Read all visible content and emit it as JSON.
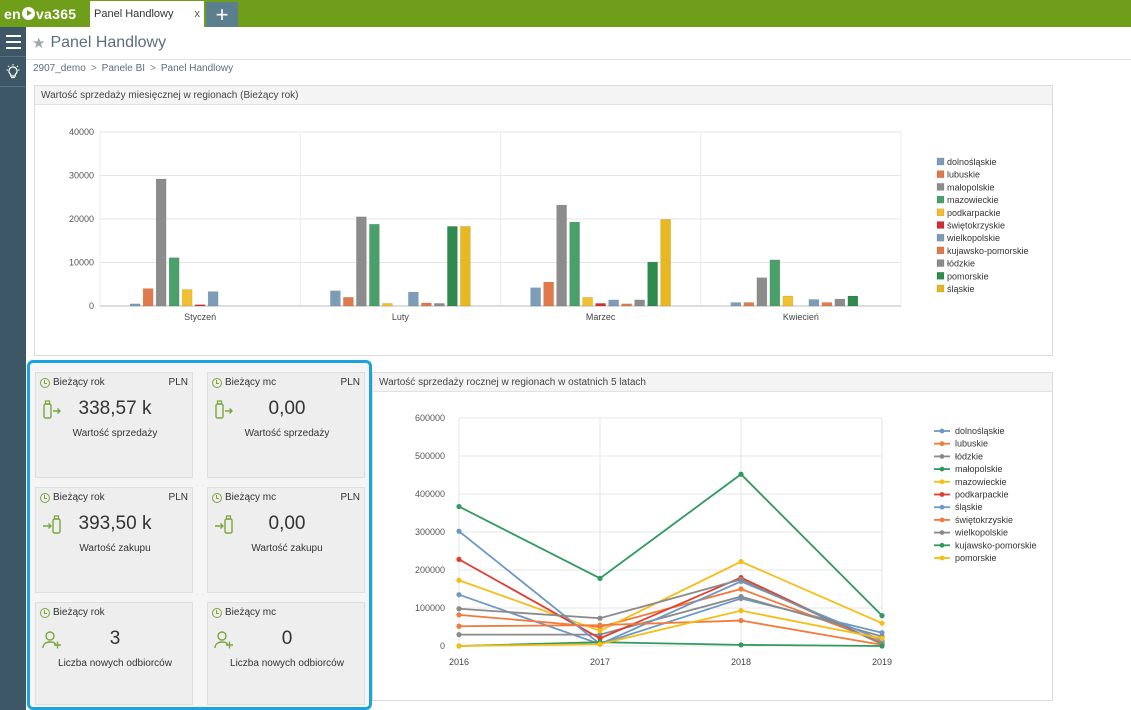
{
  "app": {
    "tab_label": "Panel Handlowy",
    "tab_close": "x",
    "add_tab": "+",
    "page_title": "Panel Handlowy"
  },
  "breadcrumb": [
    "2907_demo",
    "Panele BI",
    "Panel Handlowy"
  ],
  "colors": {
    "topbar": "#6f9e1a",
    "sidebar": "#3e5767",
    "highlight": "#1ca3dc"
  },
  "bar_panel": {
    "title": "Wartość sprzedaży miesięcznej w regionach (Bieżący rok)"
  },
  "line_panel": {
    "title": "Wartość sprzedaży rocznej w regionach w ostatnich 5 latach"
  },
  "kpis": [
    {
      "period": "Bieżący rok",
      "currency": "PLN",
      "value": "338,57 k",
      "label": "Wartość sprzedaży",
      "icon": "sales-icon"
    },
    {
      "period": "Bieżący mc",
      "currency": "PLN",
      "value": "0,00",
      "label": "Wartość sprzedaży",
      "icon": "sales-icon"
    },
    {
      "period": "Bieżący rok",
      "currency": "PLN",
      "value": "393,50 k",
      "label": "Wartość zakupu",
      "icon": "purchase-icon"
    },
    {
      "period": "Bieżący mc",
      "currency": "PLN",
      "value": "0,00",
      "label": "Wartość zakupu",
      "icon": "purchase-icon"
    },
    {
      "period": "Bieżący rok",
      "currency": "",
      "value": "3",
      "label": "Liczba nowych odbiorców",
      "icon": "new-customer-icon"
    },
    {
      "period": "Bieżący mc",
      "currency": "",
      "value": "0",
      "label": "Liczba nowych odbiorców",
      "icon": "new-customer-icon"
    }
  ],
  "chart_data": [
    {
      "type": "bar",
      "title": "Wartość sprzedaży miesięcznej w regionach (Bieżący rok)",
      "categories": [
        "Styczeń",
        "Luty",
        "Marzec",
        "Kwiecień"
      ],
      "ylim": [
        0,
        40000
      ],
      "yticks": [
        0,
        10000,
        20000,
        30000,
        40000
      ],
      "grid": true,
      "legend": "right",
      "series": [
        {
          "name": "dolnośląskie",
          "color": "#7c9cb8",
          "values": [
            500,
            3500,
            4200,
            800
          ]
        },
        {
          "name": "lubuskie",
          "color": "#e07a4c",
          "values": [
            4000,
            2000,
            5500,
            800
          ]
        },
        {
          "name": "małopolskie",
          "color": "#8c8c8c",
          "values": [
            29200,
            20500,
            23200,
            6500
          ]
        },
        {
          "name": "mazowieckie",
          "color": "#4aa06a",
          "values": [
            11100,
            18800,
            19300,
            10600
          ]
        },
        {
          "name": "podkarpackie",
          "color": "#f0c030",
          "values": [
            3800,
            600,
            2000,
            2300
          ]
        },
        {
          "name": "świętokrzyskie",
          "color": "#d03030",
          "values": [
            300,
            0,
            600,
            0
          ]
        },
        {
          "name": "wielkopolskie",
          "color": "#7c9cb8",
          "values": [
            3300,
            3200,
            1400,
            1500
          ]
        },
        {
          "name": "kujawsko-pomorskie",
          "color": "#e07a4c",
          "values": [
            0,
            700,
            500,
            800
          ]
        },
        {
          "name": "łódzkie",
          "color": "#8c8c8c",
          "values": [
            0,
            600,
            1400,
            1600
          ]
        },
        {
          "name": "pomorskie",
          "color": "#2e8b4e",
          "values": [
            0,
            18300,
            10100,
            2300
          ]
        },
        {
          "name": "śląskie",
          "color": "#e8b822",
          "values": [
            0,
            18300,
            19900,
            0
          ]
        }
      ]
    },
    {
      "type": "line",
      "title": "Wartość sprzedaży rocznej w regionach w ostatnich 5 latach",
      "x": [
        "2016",
        "2017",
        "2018",
        "2019"
      ],
      "ylim": [
        0,
        600000
      ],
      "yticks": [
        0,
        100000,
        200000,
        300000,
        400000,
        500000,
        600000
      ],
      "grid": true,
      "legend": "right",
      "series": [
        {
          "name": "dolnośląskie",
          "color": "#6d9ac4",
          "values": [
            135000,
            5000,
            125000,
            35000
          ]
        },
        {
          "name": "lubuskie",
          "color": "#f07b3c",
          "values": [
            82000,
            50000,
            150000,
            10000
          ]
        },
        {
          "name": "łódzkie",
          "color": "#8a8a8a",
          "values": [
            30000,
            30000,
            130000,
            25000
          ]
        },
        {
          "name": "małopolskie",
          "color": "#2f9a5e",
          "values": [
            367000,
            178000,
            452000,
            80000
          ]
        },
        {
          "name": "mazowieckie",
          "color": "#f6bd16",
          "values": [
            173000,
            40000,
            222000,
            60000
          ]
        },
        {
          "name": "podkarpackie",
          "color": "#e03c31",
          "values": [
            228000,
            20000,
            180000,
            5000
          ]
        },
        {
          "name": "śląskie",
          "color": "#6d9ac4",
          "values": [
            302000,
            5000,
            170000,
            15000
          ]
        },
        {
          "name": "świętokrzyskie",
          "color": "#f07b3c",
          "values": [
            52000,
            55000,
            67000,
            3000
          ]
        },
        {
          "name": "wielkopolskie",
          "color": "#8a8a8a",
          "values": [
            98000,
            73000,
            175000,
            5000
          ]
        },
        {
          "name": "kujawsko-pomorskie",
          "color": "#2f9a5e",
          "values": [
            0,
            10000,
            3000,
            0
          ]
        },
        {
          "name": "pomorskie",
          "color": "#f6bd16",
          "values": [
            0,
            5000,
            93000,
            20000
          ]
        }
      ]
    }
  ]
}
